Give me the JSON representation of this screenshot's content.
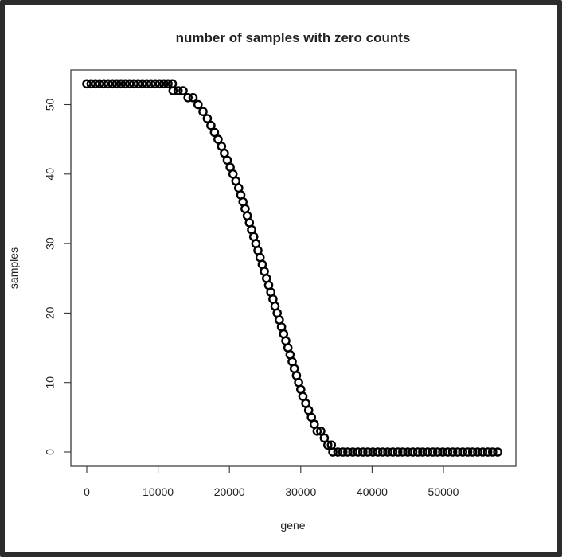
{
  "chart_data": {
    "type": "scatter",
    "title": "number of samples with zero counts",
    "xlabel": "gene",
    "ylabel": "samples",
    "xlim": [
      0,
      58000
    ],
    "ylim": [
      0,
      53
    ],
    "xticks": [
      "0",
      "10000",
      "20000",
      "30000",
      "40000",
      "50000"
    ],
    "yticks": [
      "0",
      "10",
      "20",
      "30",
      "40",
      "50"
    ],
    "grid": false,
    "legend": "none",
    "point_color": "#000000",
    "x": [
      0,
      600,
      1200,
      1800,
      2400,
      3000,
      3600,
      4200,
      4800,
      5400,
      6000,
      6600,
      7200,
      7800,
      8400,
      9000,
      9600,
      10200,
      10800,
      11400,
      12000,
      12100,
      12800,
      13500,
      14200,
      14900,
      15600,
      16300,
      16900,
      17400,
      17900,
      18400,
      18900,
      19300,
      19700,
      20100,
      20500,
      20900,
      21300,
      21600,
      21900,
      22200,
      22500,
      22800,
      23100,
      23400,
      23700,
      24000,
      24300,
      24600,
      24900,
      25200,
      25500,
      25800,
      26100,
      26400,
      26700,
      27000,
      27300,
      27600,
      27900,
      28200,
      28500,
      28800,
      29100,
      29400,
      29700,
      30000,
      30300,
      30700,
      31100,
      31500,
      31900,
      32300,
      32800,
      33300,
      33800,
      34300,
      34500,
      35200,
      35900,
      36600,
      37300,
      38000,
      38700,
      39400,
      40100,
      40800,
      41500,
      42200,
      42900,
      43600,
      44300,
      45000,
      45700,
      46400,
      47100,
      47800,
      48500,
      49200,
      49900,
      50600,
      51300,
      52000,
      52700,
      53400,
      54100,
      54800,
      55500,
      56200,
      56900,
      57600
    ],
    "y": [
      53,
      53,
      53,
      53,
      53,
      53,
      53,
      53,
      53,
      53,
      53,
      53,
      53,
      53,
      53,
      53,
      53,
      53,
      53,
      53,
      53,
      52,
      52,
      52,
      51,
      51,
      50,
      49,
      48,
      47,
      46,
      45,
      44,
      43,
      42,
      41,
      40,
      39,
      38,
      37,
      36,
      35,
      34,
      33,
      32,
      31,
      30,
      29,
      28,
      27,
      26,
      25,
      24,
      23,
      22,
      21,
      20,
      19,
      18,
      17,
      16,
      15,
      14,
      13,
      12,
      11,
      10,
      9,
      8,
      7,
      6,
      5,
      4,
      3,
      3,
      2,
      1,
      1,
      0,
      0,
      0,
      0,
      0,
      0,
      0,
      0,
      0,
      0,
      0,
      0,
      0,
      0,
      0,
      0,
      0,
      0,
      0,
      0,
      0,
      0,
      0,
      0,
      0,
      0,
      0,
      0,
      0,
      0,
      0,
      0,
      0,
      0
    ]
  }
}
